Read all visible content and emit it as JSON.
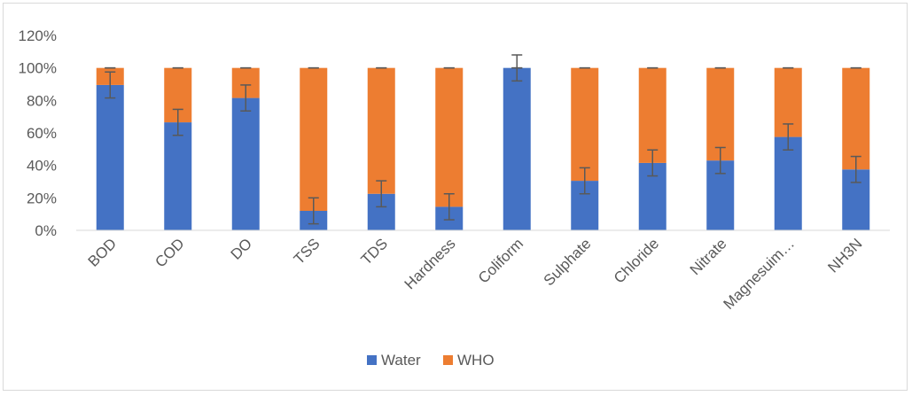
{
  "chart_data": {
    "type": "bar",
    "stacked": true,
    "percent": true,
    "categories": [
      "BOD",
      "COD",
      "DO",
      "TSS",
      "TDS",
      "Hardness",
      "Coliform",
      "Sulphate",
      "Chloride",
      "Nitrate",
      "Magnesuim…",
      "NH3N"
    ],
    "series": [
      {
        "name": "Water",
        "color": "#4472C4",
        "values": [
          89.5,
          66.5,
          81.5,
          12,
          22.5,
          14.5,
          100,
          30.5,
          41.5,
          43,
          57.5,
          37.5
        ],
        "error": [
          8,
          8,
          8,
          8,
          8,
          8,
          8,
          8,
          8,
          8,
          8,
          8
        ]
      },
      {
        "name": "WHO",
        "color": "#ED7D31",
        "values": [
          10.5,
          33.5,
          18.5,
          88,
          77.5,
          85.5,
          0,
          69.5,
          58.5,
          57,
          42.5,
          62.5
        ],
        "error": [
          0,
          0,
          0,
          0,
          0,
          0,
          0,
          0,
          0,
          0,
          0,
          0
        ]
      }
    ],
    "ylim": [
      0,
      120
    ],
    "yticks": [
      "0%",
      "20%",
      "40%",
      "60%",
      "80%",
      "100%",
      "120%"
    ],
    "legend_position": "bottom",
    "grid": false
  }
}
